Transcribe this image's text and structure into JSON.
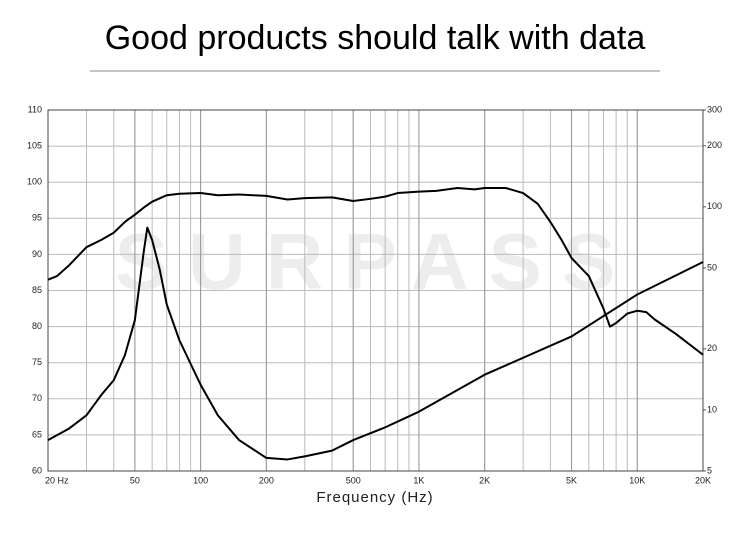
{
  "chart_data": {
    "type": "line",
    "title": "Good products should talk with data",
    "watermark": "SURPASS",
    "x_label": "Frequency (Hz)",
    "xscale": "log",
    "y2scale": "log",
    "xlim": [
      20,
      20000
    ],
    "ylim": [
      60,
      110
    ],
    "y2lim": [
      5,
      300
    ],
    "xticks": [
      {
        "value": 20,
        "label": "20  Hz"
      },
      50,
      100,
      200,
      500,
      {
        "value": 1000,
        "label": "1K"
      },
      {
        "value": 2000,
        "label": "2K"
      },
      {
        "value": 5000,
        "label": "5K"
      },
      {
        "value": 10000,
        "label": "10K"
      },
      {
        "value": 20000,
        "label": "20K"
      }
    ],
    "yticks": [
      60,
      65,
      70,
      75,
      80,
      85,
      90,
      95,
      100,
      105,
      110
    ],
    "y2ticks": [
      5,
      10,
      20,
      50,
      100,
      200,
      300
    ],
    "grid": true,
    "minor_grid": true,
    "series": [
      {
        "color": "#000000",
        "x": [
          20,
          22,
          25,
          30,
          35,
          40,
          45,
          50,
          55,
          60,
          70,
          80,
          100,
          120,
          150,
          200,
          250,
          300,
          400,
          500,
          600,
          700,
          800,
          1000,
          1200,
          1500,
          1800,
          2000,
          2500,
          3000,
          3500,
          4000,
          4500,
          5000,
          6000,
          7000,
          7500,
          8000,
          9000,
          10000,
          11000,
          12000,
          15000,
          20000
        ],
        "values": [
          86.5,
          87,
          88.5,
          91,
          92,
          93,
          94.5,
          95.5,
          96.5,
          97.3,
          98.2,
          98.4,
          98.5,
          98.2,
          98.3,
          98.1,
          97.6,
          97.8,
          97.9,
          97.4,
          97.7,
          98,
          98.5,
          98.7,
          98.8,
          99.2,
          99,
          99.2,
          99.2,
          98.5,
          97,
          94.5,
          92,
          89.5,
          87,
          82.5,
          80,
          80.5,
          81.8,
          82.2,
          82,
          81,
          79,
          76.1
        ]
      },
      {
        "color": "#000000",
        "axis": "y2",
        "x": [
          20,
          25,
          30,
          35,
          40,
          45,
          50,
          55,
          57,
          60,
          65,
          70,
          80,
          100,
          120,
          150,
          200,
          250,
          300,
          400,
          500,
          700,
          1000,
          2000,
          5000,
          10000,
          20000
        ],
        "values": [
          7.1,
          8.1,
          9.4,
          11.8,
          14,
          18.6,
          27.7,
          61,
          79,
          68.6,
          49,
          33,
          22,
          13.3,
          9.4,
          7.1,
          5.8,
          5.7,
          5.9,
          6.3,
          7.1,
          8.2,
          9.8,
          14.9,
          23,
          37,
          53.5
        ]
      }
    ]
  }
}
